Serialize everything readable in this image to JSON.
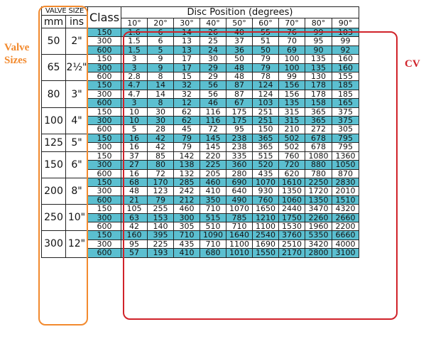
{
  "annotations": {
    "valve_sizes": [
      "Valve",
      "Sizes"
    ],
    "cv": "CV"
  },
  "header": {
    "valve_size": "VALVE SIZE",
    "mm": "mm",
    "ins": "ins",
    "class": "Class",
    "disc_position": "Disc Position  (degrees)",
    "degrees": [
      "10°",
      "20°",
      "30°",
      "40°",
      "50°",
      "60°",
      "70°",
      "80°",
      "90°"
    ]
  },
  "groups": [
    {
      "mm": "50",
      "ins": "2\"",
      "rows": [
        {
          "cls": "150",
          "v": [
            "1.6",
            "6",
            "14",
            "26",
            "40",
            "55",
            "76",
            "99",
            "103"
          ]
        },
        {
          "cls": "300",
          "v": [
            "1.5",
            "6",
            "13",
            "25",
            "37",
            "51",
            "70",
            "95",
            "99"
          ]
        },
        {
          "cls": "600",
          "v": [
            "1.5",
            "5",
            "13",
            "24",
            "36",
            "50",
            "69",
            "90",
            "92"
          ]
        }
      ]
    },
    {
      "mm": "65",
      "ins": "2½\"",
      "rows": [
        {
          "cls": "150",
          "v": [
            "3",
            "9",
            "17",
            "30",
            "50",
            "79",
            "100",
            "135",
            "160"
          ]
        },
        {
          "cls": "300",
          "v": [
            "3",
            "9",
            "17",
            "29",
            "48",
            "79",
            "100",
            "135",
            "160"
          ]
        },
        {
          "cls": "600",
          "v": [
            "2.8",
            "8",
            "15",
            "29",
            "48",
            "78",
            "99",
            "130",
            "155"
          ]
        }
      ]
    },
    {
      "mm": "80",
      "ins": "3\"",
      "rows": [
        {
          "cls": "150",
          "v": [
            "4.7",
            "14",
            "32",
            "56",
            "87",
            "124",
            "156",
            "178",
            "185"
          ]
        },
        {
          "cls": "300",
          "v": [
            "4.7",
            "14",
            "32",
            "56",
            "87",
            "124",
            "156",
            "178",
            "185"
          ]
        },
        {
          "cls": "600",
          "v": [
            "3",
            "8",
            "12",
            "46",
            "67",
            "103",
            "135",
            "158",
            "165"
          ]
        }
      ]
    },
    {
      "mm": "100",
      "ins": "4\"",
      "rows": [
        {
          "cls": "150",
          "v": [
            "10",
            "30",
            "62",
            "116",
            "175",
            "251",
            "315",
            "365",
            "375"
          ]
        },
        {
          "cls": "300",
          "v": [
            "10",
            "30",
            "62",
            "116",
            "175",
            "251",
            "315",
            "365",
            "375"
          ]
        },
        {
          "cls": "600",
          "v": [
            "5",
            "28",
            "45",
            "72",
            "95",
            "150",
            "210",
            "272",
            "305"
          ]
        }
      ]
    },
    {
      "mm": "125",
      "ins": "5\"",
      "rows": [
        {
          "cls": "150",
          "v": [
            "16",
            "42",
            "79",
            "145",
            "238",
            "365",
            "502",
            "678",
            "795"
          ]
        },
        {
          "cls": "300",
          "v": [
            "16",
            "42",
            "79",
            "145",
            "238",
            "365",
            "502",
            "678",
            "795"
          ]
        }
      ]
    },
    {
      "mm": "150",
      "ins": "6\"",
      "rows": [
        {
          "cls": "150",
          "v": [
            "37",
            "85",
            "142",
            "220",
            "335",
            "515",
            "760",
            "1080",
            "1360"
          ]
        },
        {
          "cls": "300",
          "v": [
            "27",
            "80",
            "138",
            "225",
            "360",
            "520",
            "720",
            "880",
            "1050"
          ]
        },
        {
          "cls": "600",
          "v": [
            "16",
            "72",
            "132",
            "205",
            "280",
            "435",
            "620",
            "780",
            "870"
          ]
        }
      ]
    },
    {
      "mm": "200",
      "ins": "8\"",
      "rows": [
        {
          "cls": "150",
          "v": [
            "68",
            "170",
            "285",
            "460",
            "690",
            "1070",
            "1610",
            "2250",
            "2830"
          ]
        },
        {
          "cls": "300",
          "v": [
            "48",
            "123",
            "242",
            "410",
            "640",
            "930",
            "1350",
            "1720",
            "2010"
          ]
        },
        {
          "cls": "600",
          "v": [
            "21",
            "79",
            "212",
            "350",
            "490",
            "760",
            "1060",
            "1350",
            "1510"
          ]
        }
      ]
    },
    {
      "mm": "250",
      "ins": "10\"",
      "rows": [
        {
          "cls": "150",
          "v": [
            "105",
            "255",
            "460",
            "710",
            "1070",
            "1650",
            "2440",
            "3470",
            "4320"
          ]
        },
        {
          "cls": "300",
          "v": [
            "63",
            "153",
            "300",
            "515",
            "785",
            "1210",
            "1750",
            "2260",
            "2660"
          ]
        },
        {
          "cls": "600",
          "v": [
            "42",
            "140",
            "305",
            "510",
            "710",
            "1100",
            "1530",
            "1960",
            "2200"
          ]
        }
      ]
    },
    {
      "mm": "300",
      "ins": "12\"",
      "rows": [
        {
          "cls": "150",
          "v": [
            "160",
            "395",
            "710",
            "1090",
            "1640",
            "2540",
            "3760",
            "5350",
            "6660"
          ]
        },
        {
          "cls": "300",
          "v": [
            "95",
            "225",
            "435",
            "710",
            "1100",
            "1690",
            "2510",
            "3420",
            "4000"
          ]
        },
        {
          "cls": "600",
          "v": [
            "57",
            "193",
            "410",
            "680",
            "1010",
            "1550",
            "2170",
            "2800",
            "3100"
          ]
        }
      ]
    }
  ]
}
